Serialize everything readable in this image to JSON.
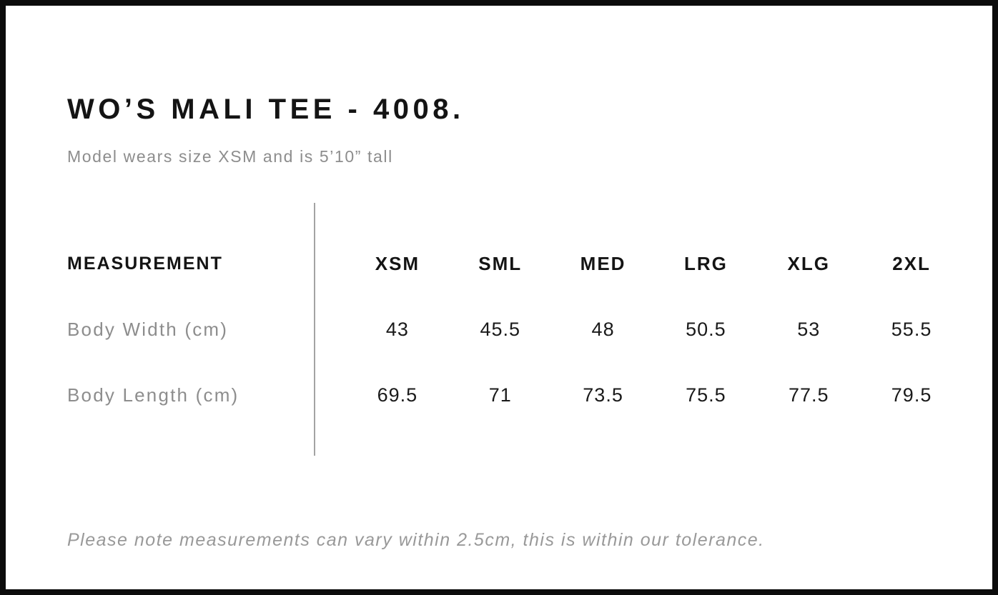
{
  "product": {
    "title": "WO’S MALI TEE - 4008.",
    "subtitle": "Model wears size XSM and is 5’10” tall"
  },
  "size_chart": {
    "measurement_header": "MEASUREMENT",
    "sizes": [
      "XSM",
      "SML",
      "MED",
      "LRG",
      "XLG",
      "2XL"
    ],
    "rows": [
      {
        "label": "Body Width (cm)",
        "values": [
          "43",
          "45.5",
          "48",
          "50.5",
          "53",
          "55.5"
        ]
      },
      {
        "label": "Body Length (cm)",
        "values": [
          "69.5",
          "71",
          "73.5",
          "75.5",
          "77.5",
          "79.5"
        ]
      }
    ]
  },
  "footer": {
    "note": "Please note measurements can vary within 2.5cm, this is within our tolerance."
  },
  "colors": {
    "text_primary": "#141414",
    "text_secondary": "#8d8d8d",
    "note_text": "#999999",
    "divider": "#a3a3a3",
    "frame_border": "#0c0c0c",
    "background": "#ffffff"
  },
  "chart_data": {
    "type": "table",
    "title": "WO’S MALI TEE - 4008.",
    "columns": [
      "MEASUREMENT",
      "XSM",
      "SML",
      "MED",
      "LRG",
      "XLG",
      "2XL"
    ],
    "rows": [
      [
        "Body Width (cm)",
        43,
        45.5,
        48,
        50.5,
        53,
        55.5
      ],
      [
        "Body Length (cm)",
        69.5,
        71,
        73.5,
        75.5,
        77.5,
        79.5
      ]
    ]
  }
}
